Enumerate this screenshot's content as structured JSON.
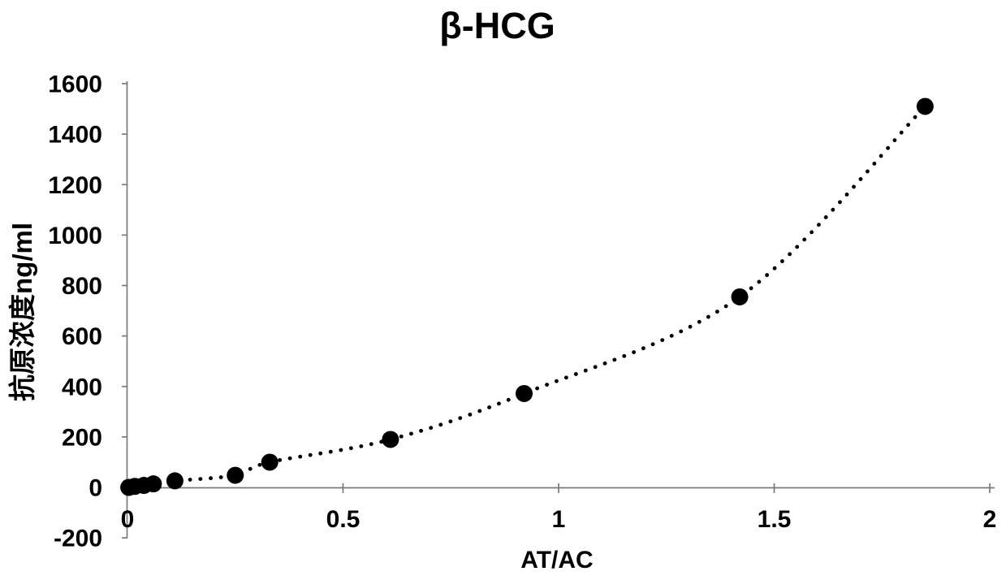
{
  "chart_data": {
    "type": "scatter",
    "title": "β-HCG",
    "xlabel": "AT/AC",
    "ylabel": "抗原浓度ng/ml",
    "xlim": [
      0,
      2
    ],
    "ylim": [
      -200,
      1600
    ],
    "grid": false,
    "legend": false,
    "x_ticks": {
      "values": [
        0,
        0.5,
        1,
        1.5,
        2
      ],
      "labels": [
        "0",
        "0.5",
        "1",
        "1.5",
        "2"
      ]
    },
    "y_ticks": {
      "values": [
        -200,
        0,
        200,
        400,
        600,
        800,
        1000,
        1200,
        1400,
        1600
      ],
      "labels": [
        "-200",
        "0",
        "200",
        "400",
        "600",
        "800",
        "1000",
        "1200",
        "1400",
        "1600"
      ]
    },
    "points": [
      {
        "x": 0.003,
        "y": 0
      },
      {
        "x": 0.017,
        "y": 4
      },
      {
        "x": 0.038,
        "y": 8
      },
      {
        "x": 0.06,
        "y": 14
      },
      {
        "x": 0.11,
        "y": 26
      },
      {
        "x": 0.25,
        "y": 48
      },
      {
        "x": 0.33,
        "y": 100
      },
      {
        "x": 0.61,
        "y": 190
      },
      {
        "x": 0.92,
        "y": 372
      },
      {
        "x": 1.42,
        "y": 755
      },
      {
        "x": 1.85,
        "y": 1510
      }
    ],
    "trendline": {
      "style": "dotted",
      "through_points": true
    },
    "colors": {
      "ink": "#000000",
      "axis": "#7a7a7a",
      "background": "#ffffff"
    }
  }
}
